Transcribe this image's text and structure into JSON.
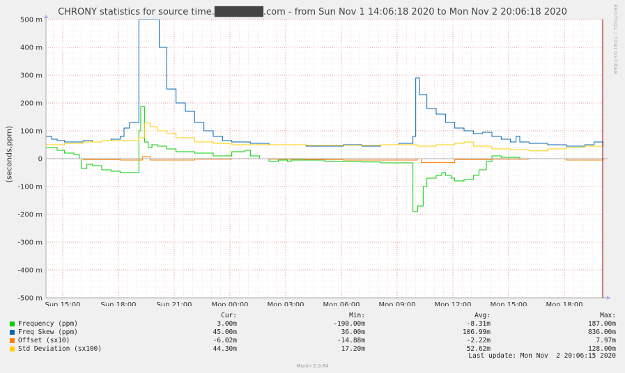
{
  "title": "CHRONY statistics for source time.███████.com - from Sun Nov  1 14:06:18 2020 to Mon Nov  2 20:06:18 2020",
  "watermark": "RRDTOOL / TOBI OETIKER",
  "legend_headers": {
    "cur": "Cur:",
    "min": "Min:",
    "avg": "Avg:",
    "max": "Max:"
  },
  "legend": [
    {
      "name": "Frequency (ppm)",
      "color": "#00cc00",
      "cur": "3.00m",
      "min": "-190.00m",
      "avg": "-8.31m",
      "max": "187.00m"
    },
    {
      "name": "Freq Skew (ppm)",
      "color": "#0066b3",
      "cur": "45.00m",
      "min": "36.00m",
      "avg": "106.99m",
      "max": "836.00m"
    },
    {
      "name": "Offset (sx10)",
      "color": "#ff8000",
      "cur": "-6.02m",
      "min": "-14.88m",
      "avg": "-2.22m",
      "max": "7.97m"
    },
    {
      "name": "Std Deviation (sx100)",
      "color": "#ffcc00",
      "cur": "44.30m",
      "min": "17.20m",
      "avg": "52.62m",
      "max": "128.00m"
    }
  ],
  "last_update": "Last update: Mon Nov  2 20:06:15 2020",
  "footer": "Munin 2.0.64",
  "chart_data": {
    "type": "line",
    "ylabel": "(seconds,ppm)",
    "ylim": [
      -500,
      500
    ],
    "y_unit": "m",
    "yticks": [
      -500,
      -400,
      -300,
      -200,
      -100,
      0,
      100,
      200,
      300,
      400,
      500
    ],
    "ytick_labels": [
      "-500 m",
      "-400 m",
      "-300 m",
      "-200 m",
      "-100 m",
      "0",
      "100 m",
      "200 m",
      "300 m",
      "400 m",
      "500 m"
    ],
    "x_unit": "hours since Sun 14:06",
    "xlim": [
      0,
      30
    ],
    "xticks": [
      0.9,
      3.9,
      6.9,
      9.9,
      12.9,
      15.9,
      18.9,
      21.9,
      24.9,
      27.9
    ],
    "xtick_labels": [
      "Sun 15:00",
      "Sun 18:00",
      "Sun 21:00",
      "Mon 00:00",
      "Mon 03:00",
      "Mon 06:00",
      "Mon 09:00",
      "Mon 12:00",
      "Mon 15:00",
      "Mon 18:00"
    ],
    "grid": true,
    "series": [
      {
        "name": "Frequency (ppm)",
        "color": "#00cc00",
        "x": [
          0,
          0.6,
          1.0,
          1.5,
          1.8,
          1.9,
          2.2,
          2.5,
          3.0,
          3.5,
          4.0,
          4.5,
          4.9,
          5.0,
          5.1,
          5.3,
          5.5,
          5.7,
          6.0,
          6.5,
          7.0,
          7.5,
          8.0,
          9.0,
          10.0,
          10.7,
          11.0,
          11.5,
          12.0,
          12.5,
          13.0,
          13.2,
          14.0,
          15.0,
          16.0,
          17.0,
          18.0,
          19.0,
          19.7,
          19.75,
          20.0,
          20.3,
          20.5,
          21.0,
          21.3,
          21.5,
          21.8,
          22.0,
          22.5,
          23.0,
          23.3,
          23.7,
          24.0,
          24.5,
          25.0,
          25.5,
          26.0,
          27.0,
          28.0,
          29.0,
          30.0
        ],
        "y": [
          40,
          30,
          20,
          15,
          0,
          -35,
          -20,
          -25,
          -40,
          -45,
          -50,
          -50,
          -50,
          100,
          187,
          60,
          40,
          50,
          45,
          35,
          25,
          25,
          20,
          10,
          25,
          30,
          10,
          0,
          -10,
          -5,
          -10,
          -5,
          -5,
          -10,
          -10,
          -12,
          -15,
          -15,
          -15,
          -190,
          -170,
          -100,
          -70,
          -60,
          -50,
          -60,
          -70,
          -80,
          -75,
          -60,
          -40,
          -10,
          10,
          5,
          5,
          0,
          0,
          0,
          -5,
          -5,
          3
        ]
      },
      {
        "name": "Freq Skew (ppm)",
        "color": "#0066b3",
        "x": [
          0,
          0.3,
          0.6,
          1.0,
          1.5,
          2.0,
          2.5,
          3.0,
          3.5,
          4.0,
          4.2,
          4.5,
          4.9,
          5.0,
          5.1,
          5.3,
          5.8,
          5.9,
          6.1,
          6.5,
          7.0,
          7.5,
          8.0,
          8.5,
          9.0,
          9.5,
          10.0,
          11.0,
          12.0,
          13.0,
          14.0,
          15.0,
          16.0,
          17.0,
          18.0,
          19.0,
          19.7,
          19.75,
          19.9,
          20.1,
          20.5,
          21.0,
          21.5,
          22.0,
          22.5,
          23.0,
          23.5,
          24.0,
          24.5,
          25.0,
          25.3,
          25.5,
          26.0,
          27.0,
          28.0,
          29.0,
          29.5,
          30.0
        ],
        "y": [
          80,
          70,
          65,
          60,
          60,
          65,
          60,
          65,
          70,
          80,
          110,
          130,
          130,
          500,
          836,
          500,
          800,
          500,
          400,
          250,
          200,
          170,
          130,
          100,
          80,
          65,
          60,
          55,
          50,
          50,
          45,
          45,
          50,
          45,
          50,
          55,
          55,
          80,
          290,
          230,
          180,
          160,
          130,
          110,
          100,
          90,
          95,
          80,
          70,
          60,
          80,
          60,
          55,
          50,
          45,
          50,
          60,
          45
        ]
      },
      {
        "name": "Offset (sx10)",
        "color": "#ff8000",
        "x": [
          0,
          2,
          4,
          5,
          5.2,
          5.6,
          8,
          10,
          12,
          14,
          16,
          18,
          19.7,
          20.0,
          20.2,
          22,
          24,
          26,
          28,
          30
        ],
        "y": [
          0,
          -3,
          -5,
          -5,
          8,
          -5,
          -2,
          0,
          -2,
          -3,
          -5,
          -5,
          -5,
          0,
          -14,
          -3,
          -2,
          0,
          -5,
          -6
        ]
      },
      {
        "name": "Std Deviation (sx100)",
        "color": "#ffcc00",
        "x": [
          0,
          1,
          2,
          3,
          4,
          5,
          5.3,
          5.6,
          6.0,
          6.5,
          7.0,
          8.0,
          9.0,
          10.0,
          12.0,
          14.0,
          16.0,
          18.0,
          19.7,
          20.0,
          21.0,
          22.0,
          22.5,
          23.0,
          24.0,
          25.0,
          26.0,
          27.0,
          28.0,
          29.0,
          30.0
        ],
        "y": [
          50,
          55,
          60,
          65,
          65,
          75,
          128,
          115,
          100,
          90,
          75,
          60,
          55,
          50,
          50,
          48,
          48,
          50,
          50,
          45,
          50,
          55,
          60,
          45,
          35,
          32,
          28,
          35,
          40,
          45,
          44
        ]
      }
    ],
    "vrule_x": 30
  }
}
